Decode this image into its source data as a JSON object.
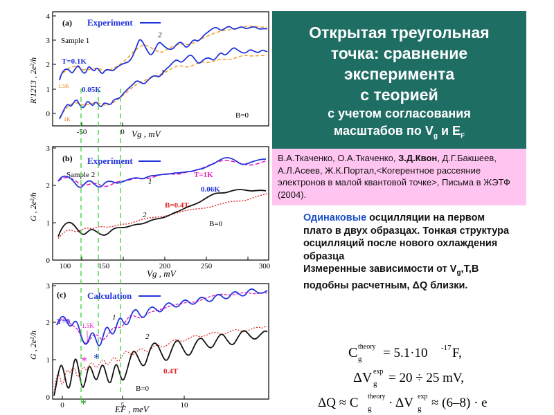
{
  "title": {
    "line1": "Открытая треугольная",
    "line2": "точка: сравнение",
    "line3": "эксперимента",
    "line4": "с теорией",
    "line5": "с учетом согласования",
    "line6_prefix": "масштабов по V",
    "line6_sub1": "g",
    "line6_mid": " и E",
    "line6_sub2": "F"
  },
  "reference": {
    "authors_a": "В.А.Ткаченко, О.А.Ткаченко, ",
    "authors_b": "З.Д.Квон",
    "authors_c": ", Д.Г.Бакшеев, А.Л.Асеев, Ж.К.Портал,<Когерентное рассеяние электронов в малой квантовой точке>, Письма в ЖЭТФ (2004)."
  },
  "description": {
    "w1": "Одинаковые",
    "w2": " осцилляции на первом плато в двух образцах. Тонкая структура осцилляций после нового охлаждения образца",
    "w3": "Измеренные зависимости от V",
    "w3sub": "g",
    "w4": ",T,B подобны расчетным, ΔQ близки."
  },
  "formulas": {
    "f1_lhs": "C",
    "f1_sup": "theory",
    "f1_sub": "g",
    "f1_rhs": "= 5.1·10",
    "f1_exp": "-17",
    "f1_unit": " F,",
    "f2_lhs": "ΔV",
    "f2_sup": "exp",
    "f2_sub": "g",
    "f2_rhs": "= 20 ÷ 25 mV,",
    "f3_lhs": "ΔQ ≈ C",
    "f3_sup1": "theory",
    "f3_sub1": "g",
    "f3_mid": " · ΔV",
    "f3_sup2": "exp",
    "f3_sub2": "g",
    "f3_rhs": " ≈ (6–8) · e"
  },
  "panel_a": {
    "label": "(a)",
    "legend": "Experiment",
    "sample": "Sample 1",
    "ylabel": "R'1213 , 2e²/h",
    "xlabel": "Vg , mV",
    "ann_T": "T=0.1K",
    "ann_15": "1.5K",
    "ann_005": "0.05K",
    "ann_1k": "1K",
    "ann_B": "B=0",
    "curve1": "1",
    "curve2": "2",
    "yticks": [
      "0",
      "1",
      "2",
      "3",
      "4"
    ],
    "xticks": [
      "-50",
      "0"
    ]
  },
  "panel_b": {
    "label": "(b)",
    "legend": "Experiment",
    "sample": "Sample 2",
    "ylabel": "G , 2e²/h",
    "xlabel": "Vg , mV",
    "ann_T": "T=1K",
    "ann_006": "0.06K",
    "ann_B04": "B=0.4T",
    "ann_B0": "B=0",
    "curve1": "1",
    "curve2": "2",
    "yticks": [
      "0",
      "1",
      "2",
      "3"
    ],
    "xticks": [
      "100",
      "150",
      "200",
      "250",
      "300"
    ]
  },
  "panel_c": {
    "label": "(c)",
    "legend": "Calculation",
    "ylabel": "G , 2e²/h",
    "xlabel": "EF , meV",
    "ann_T0": "T=0",
    "ann_15": "1.5K",
    "ann_04": "0.4T",
    "ann_B0": "B=0",
    "curve1": "1",
    "curve2": "2",
    "star": "*",
    "yticks": [
      "0",
      "1",
      "2",
      "3"
    ],
    "xticks": [
      "0",
      "5",
      "10"
    ]
  },
  "colors": {
    "title_bg": "#1f6e64",
    "ref_bg": "#ffc4f0",
    "curve_blue": "#2233dd",
    "curve_orange": "#f0a020",
    "curve_magenta": "#e020c0",
    "curve_red": "#e02020",
    "guide_green": "#3ad03a"
  }
}
